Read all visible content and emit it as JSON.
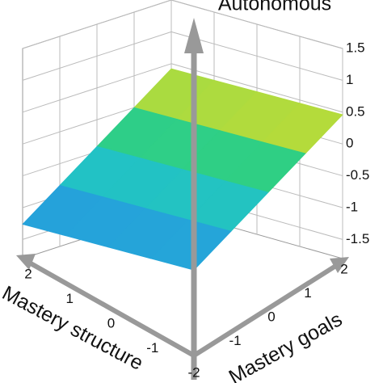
{
  "chart_data": {
    "type": "surface",
    "x_label": "Mastery structure",
    "y_label": "Mastery goals",
    "z_label": "Autonomous",
    "x": [
      -2,
      -1,
      0,
      1,
      2
    ],
    "y": [
      -2,
      -1,
      0,
      1,
      2
    ],
    "z": [
      [
        -1.22,
        -0.8,
        -0.38,
        0.04,
        0.46
      ],
      [
        -1.23,
        -0.81,
        -0.39,
        0.03,
        0.45
      ],
      [
        -1.24,
        -0.82,
        -0.4,
        0.02,
        0.44
      ],
      [
        -1.25,
        -0.83,
        -0.41,
        0.01,
        0.43
      ],
      [
        -1.26,
        -0.84,
        -0.42,
        0.0,
        0.42
      ]
    ],
    "xlim": [
      -2,
      2
    ],
    "xticks": [
      -2,
      -1,
      0,
      1,
      2
    ],
    "ylim": [
      -2,
      2
    ],
    "yticks": [
      -1,
      0,
      1,
      2
    ],
    "zlim": [
      -1.8,
      1.5
    ],
    "zticks": [
      1.5,
      1,
      0.5,
      0,
      -0.5,
      -1,
      -1.5
    ],
    "colormap": [
      "#2050c8",
      "#2890e0",
      "#20c0d0",
      "#30d080",
      "#e8e020",
      "#f8f000",
      "#f8f000"
    ],
    "grid": true
  }
}
